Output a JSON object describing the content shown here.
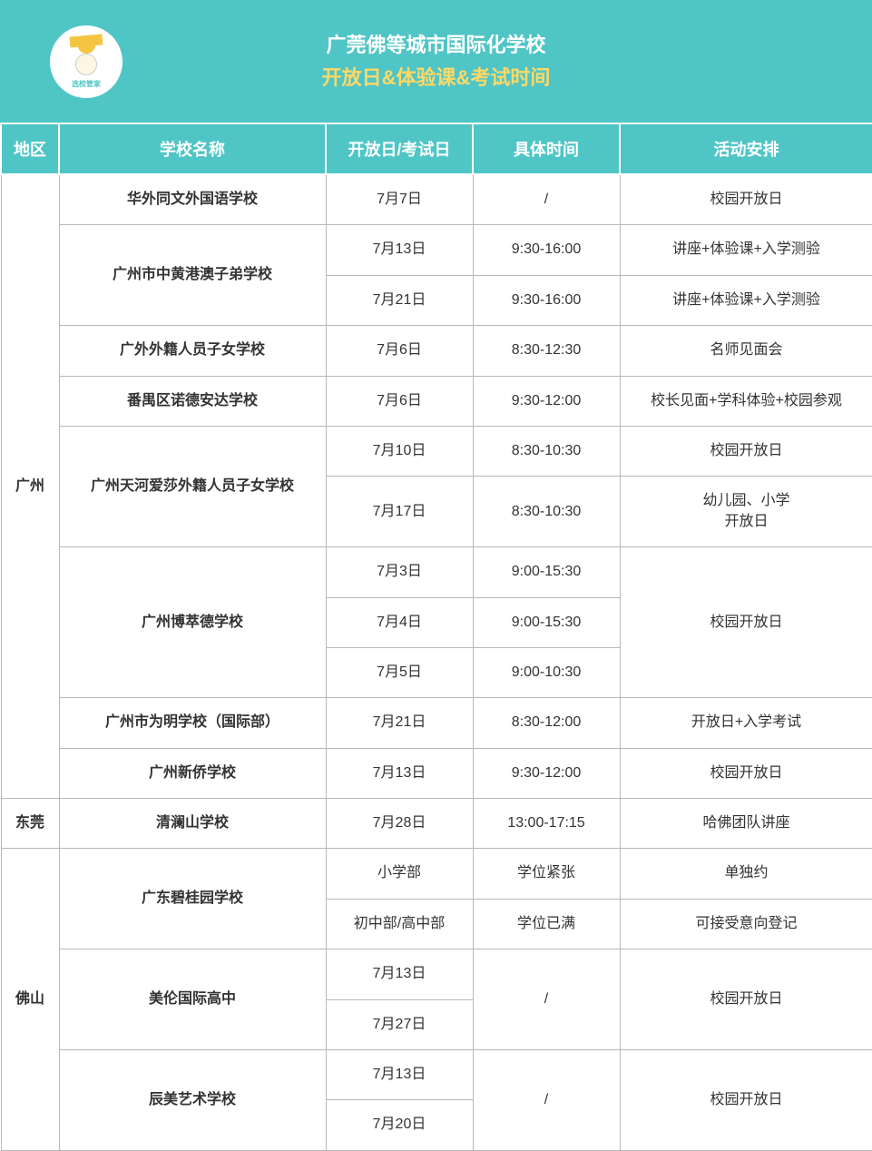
{
  "header": {
    "logo_text": "选校管家",
    "title_line1": "广莞佛等城市国际化学校",
    "title_line2": "开放日&体验课&考试时间"
  },
  "colors": {
    "header_bg": "#50c5c6",
    "subtitle": "#ffd966",
    "border": "#b8b8b8",
    "text": "#333333"
  },
  "columns": [
    "地区",
    "学校名称",
    "开放日/考试日",
    "具体时间",
    "活动安排"
  ],
  "rows": [
    {
      "region": "广州",
      "region_rowspan": 12,
      "school": "华外同文外国语学校",
      "school_rowspan": 1,
      "date": "7月7日",
      "time": "/",
      "activity": "校园开放日",
      "activity_rowspan": 1
    },
    {
      "school": "广州市中黄港澳子弟学校",
      "school_rowspan": 2,
      "date": "7月13日",
      "time": "9:30-16:00",
      "activity": "讲座+体验课+入学测验",
      "activity_rowspan": 1
    },
    {
      "date": "7月21日",
      "time": "9:30-16:00",
      "activity": "讲座+体验课+入学测验",
      "activity_rowspan": 1
    },
    {
      "school": "广外外籍人员子女学校",
      "school_rowspan": 1,
      "date": "7月6日",
      "time": "8:30-12:30",
      "activity": "名师见面会",
      "activity_rowspan": 1
    },
    {
      "school": "番禺区诺德安达学校",
      "school_rowspan": 1,
      "date": "7月6日",
      "time": "9:30-12:00",
      "activity": "校长见面+学科体验+校园参观",
      "activity_rowspan": 1
    },
    {
      "school": "广州天河爱莎外籍人员子女学校",
      "school_rowspan": 2,
      "date": "7月10日",
      "time": "8:30-10:30",
      "activity": "校园开放日",
      "activity_rowspan": 1
    },
    {
      "date": "7月17日",
      "time": "8:30-10:30",
      "activity": "幼儿园、小学\n开放日",
      "activity_rowspan": 1
    },
    {
      "school": "广州博萃德学校",
      "school_rowspan": 3,
      "date": "7月3日",
      "time": "9:00-15:30",
      "activity": "校园开放日",
      "activity_rowspan": 3
    },
    {
      "date": "7月4日",
      "time": "9:00-15:30"
    },
    {
      "date": "7月5日",
      "time": "9:00-10:30"
    },
    {
      "school": "广州市为明学校（国际部）",
      "school_rowspan": 1,
      "date": "7月21日",
      "time": "8:30-12:00",
      "activity": "开放日+入学考试",
      "activity_rowspan": 1
    },
    {
      "school": "广州新侨学校",
      "school_rowspan": 1,
      "date": "7月13日",
      "time": "9:30-12:00",
      "activity": "校园开放日",
      "activity_rowspan": 1
    },
    {
      "region": "东莞",
      "region_rowspan": 1,
      "school": "清澜山学校",
      "school_rowspan": 1,
      "date": "7月28日",
      "time": "13:00-17:15",
      "activity": "哈佛团队讲座",
      "activity_rowspan": 1
    },
    {
      "region": "佛山",
      "region_rowspan": 6,
      "school": "广东碧桂园学校",
      "school_rowspan": 2,
      "date": "小学部",
      "time": "学位紧张",
      "activity": "单独约",
      "activity_rowspan": 1
    },
    {
      "date": "初中部/高中部",
      "time": "学位已满",
      "activity": "可接受意向登记",
      "activity_rowspan": 1
    },
    {
      "school": "美伦国际高中",
      "school_rowspan": 2,
      "date": "7月13日",
      "time": "/",
      "time_rowspan": 2,
      "activity": "校园开放日",
      "activity_rowspan": 2
    },
    {
      "date": "7月27日"
    },
    {
      "school": "辰美艺术学校",
      "school_rowspan": 2,
      "date": "7月13日",
      "time": "/",
      "time_rowspan": 2,
      "activity": "校园开放日",
      "activity_rowspan": 2
    },
    {
      "date": "7月20日"
    }
  ]
}
